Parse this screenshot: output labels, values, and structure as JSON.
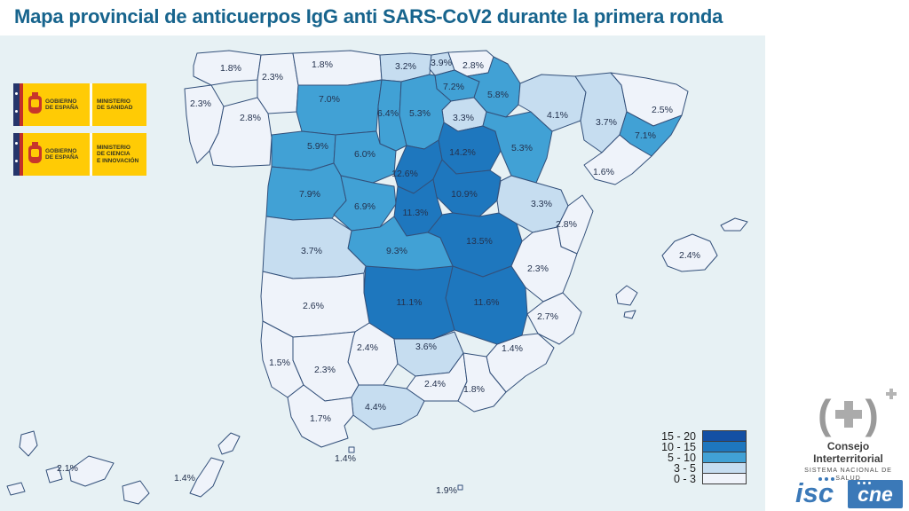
{
  "title": "Mapa provincial de anticuerpos IgG anti SARS-CoV2 durante la primera ronda",
  "colors": {
    "title_text": "#17648D",
    "sea": "#E7F1F4",
    "province_border": "#33507A",
    "label_text": "#24324E",
    "logo_yellow": "#FFCB05",
    "logo_blue": "#3B79B8"
  },
  "header_logos": {
    "gobierno": "GOBIERNO\nDE ESPAÑA",
    "ministry_1": "MINISTERIO\nDE SANIDAD",
    "ministry_2": "MINISTERIO\nDE CIENCIA\nE INNOVACIÓN"
  },
  "footer_logos": {
    "consejo_title": "Consejo Interterritorial",
    "consejo_subtitle": "SISTEMA NACIONAL DE SALUD",
    "isciii_text": "isc",
    "cne_text": "cne"
  },
  "legend": {
    "bands": [
      {
        "label": "15 - 20",
        "min": 15,
        "color": "#1450A4"
      },
      {
        "label": "10 - 15",
        "min": 10,
        "color": "#1E77BE"
      },
      {
        "label": "5 - 10",
        "min": 5,
        "color": "#41A1D5"
      },
      {
        "label": "3 - 5",
        "min": 3,
        "color": "#C6DDF0"
      },
      {
        "label": "0 - 3",
        "min": 0,
        "color": "#EFF3FA"
      }
    ]
  },
  "map": {
    "provinces": [
      {
        "id": "a-coruna",
        "name": "A Coruña",
        "value": "1.8%"
      },
      {
        "id": "lugo",
        "name": "Lugo",
        "value": "2.3%"
      },
      {
        "id": "pontevedra",
        "name": "Pontevedra",
        "value": "2.3%"
      },
      {
        "id": "ourense",
        "name": "Ourense",
        "value": "2.8%"
      },
      {
        "id": "asturias",
        "name": "Asturias",
        "value": "1.8%"
      },
      {
        "id": "cantabria",
        "name": "Cantabria",
        "value": "3.2%"
      },
      {
        "id": "vizcaya",
        "name": "Vizcaya",
        "value": "3.9%"
      },
      {
        "id": "gipuzkoa",
        "name": "Gipuzkoa",
        "value": "2.8%"
      },
      {
        "id": "alava",
        "name": "Álava",
        "value": "7.2%"
      },
      {
        "id": "navarra",
        "name": "Navarra",
        "value": "5.8%"
      },
      {
        "id": "la-rioja",
        "name": "La Rioja",
        "value": "3.3%"
      },
      {
        "id": "leon",
        "name": "León",
        "value": "7.0%"
      },
      {
        "id": "palencia",
        "name": "Palencia",
        "value": "6.4%"
      },
      {
        "id": "burgos",
        "name": "Burgos",
        "value": "5.3%"
      },
      {
        "id": "zamora",
        "name": "Zamora",
        "value": "5.9%"
      },
      {
        "id": "valladolid",
        "name": "Valladolid",
        "value": "6.0%"
      },
      {
        "id": "soria",
        "name": "Soria",
        "value": "14.2%"
      },
      {
        "id": "segovia",
        "name": "Segovia",
        "value": "12.6%"
      },
      {
        "id": "salamanca",
        "name": "Salamanca",
        "value": "7.9%"
      },
      {
        "id": "avila",
        "name": "Ávila",
        "value": "6.9%"
      },
      {
        "id": "madrid",
        "name": "Madrid",
        "value": "11.3%"
      },
      {
        "id": "guadalajara",
        "name": "Guadalajara",
        "value": "10.9%"
      },
      {
        "id": "cuenca",
        "name": "Cuenca",
        "value": "13.5%"
      },
      {
        "id": "zaragoza",
        "name": "Zaragoza",
        "value": "5.3%"
      },
      {
        "id": "huesca",
        "name": "Huesca",
        "value": "4.1%"
      },
      {
        "id": "teruel",
        "name": "Teruel",
        "value": "3.3%"
      },
      {
        "id": "lleida",
        "name": "Lleida",
        "value": "3.7%"
      },
      {
        "id": "girona",
        "name": "Girona",
        "value": "2.5%"
      },
      {
        "id": "barcelona",
        "name": "Barcelona",
        "value": "7.1%"
      },
      {
        "id": "tarragona",
        "name": "Tarragona",
        "value": "1.6%"
      },
      {
        "id": "castellon",
        "name": "Castellón",
        "value": "2.8%"
      },
      {
        "id": "valencia",
        "name": "Valencia",
        "value": "2.3%"
      },
      {
        "id": "alicante",
        "name": "Alicante",
        "value": "2.7%"
      },
      {
        "id": "murcia",
        "name": "Murcia",
        "value": "1.4%"
      },
      {
        "id": "albacete",
        "name": "Albacete",
        "value": "11.6%"
      },
      {
        "id": "ciudad-real",
        "name": "Ciudad Real",
        "value": "11.1%"
      },
      {
        "id": "toledo",
        "name": "Toledo",
        "value": "9.3%"
      },
      {
        "id": "caceres",
        "name": "Cáceres",
        "value": "3.7%"
      },
      {
        "id": "badajoz",
        "name": "Badajoz",
        "value": "2.6%"
      },
      {
        "id": "cordoba",
        "name": "Córdoba",
        "value": "2.4%"
      },
      {
        "id": "jaen",
        "name": "Jaén",
        "value": "3.6%"
      },
      {
        "id": "huelva",
        "name": "Huelva",
        "value": "1.5%"
      },
      {
        "id": "sevilla",
        "name": "Sevilla",
        "value": "2.3%"
      },
      {
        "id": "granada",
        "name": "Granada",
        "value": "2.4%"
      },
      {
        "id": "almeria",
        "name": "Almería",
        "value": "1.8%"
      },
      {
        "id": "malaga",
        "name": "Málaga",
        "value": "4.4%"
      },
      {
        "id": "cadiz",
        "name": "Cádiz",
        "value": "1.7%"
      },
      {
        "id": "baleares",
        "name": "Illes Balears",
        "value": "2.4%"
      },
      {
        "id": "tenerife",
        "name": "Santa Cruz de Tenerife",
        "value": "2.1%"
      },
      {
        "id": "las-palmas",
        "name": "Las Palmas",
        "value": "1.4%"
      },
      {
        "id": "ceuta",
        "name": "Ceuta",
        "value": "1.4%"
      },
      {
        "id": "melilla",
        "name": "Melilla",
        "value": "1.9%"
      }
    ]
  }
}
